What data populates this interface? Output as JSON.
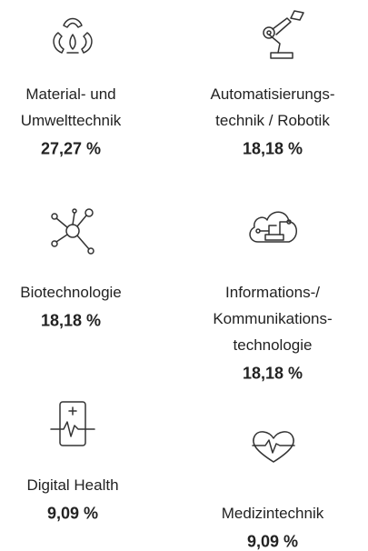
{
  "items": [
    {
      "lines": [
        "Material- und",
        "Umwelttechnik"
      ],
      "value": "27,27 %"
    },
    {
      "lines": [
        "Automatisierungs-",
        "technik / Robotik"
      ],
      "value": "18,18 %"
    },
    {
      "lines": [
        "Biotechnologie"
      ],
      "value": "18,18 %"
    },
    {
      "lines": [
        "Informations-/",
        "Kommunikations-",
        "technologie"
      ],
      "value": "18,18 %"
    },
    {
      "lines": [
        "Digital Health"
      ],
      "value": "9,09 %"
    },
    {
      "lines": [
        "Medizintechnik"
      ],
      "value": "9,09 %"
    }
  ]
}
